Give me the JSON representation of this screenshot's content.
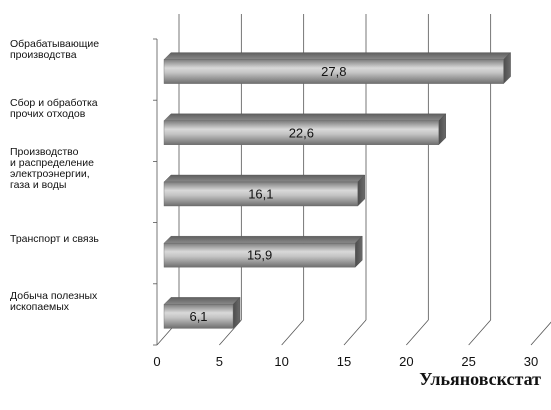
{
  "source": "Ульяновскстат",
  "chart_data": {
    "type": "bar",
    "orientation": "horizontal",
    "style": "3d",
    "categories": [
      [
        "Обрабатывающие",
        "производства"
      ],
      [
        "Сбор и обработка",
        "прочих отходов"
      ],
      [
        "Производство",
        "и распределение",
        "электроэнергии,",
        "газа и воды"
      ],
      [
        "Транспорт и связь"
      ],
      [
        "Добыча полезных",
        "ископаемых"
      ]
    ],
    "values": [
      27.8,
      22.6,
      16.1,
      15.9,
      6.1
    ],
    "data_labels": [
      "27,8",
      "22,6",
      "16,1",
      "15,9",
      "6,1"
    ],
    "xlim": [
      0,
      30
    ],
    "xticks": [
      0,
      5,
      10,
      15,
      20,
      25,
      30
    ],
    "xtick_labels": [
      "0",
      "5",
      "10",
      "15",
      "20",
      "25",
      "30"
    ],
    "grid": "vertical",
    "bar_color": "#9a9a9a",
    "grid_color": "#555555"
  }
}
